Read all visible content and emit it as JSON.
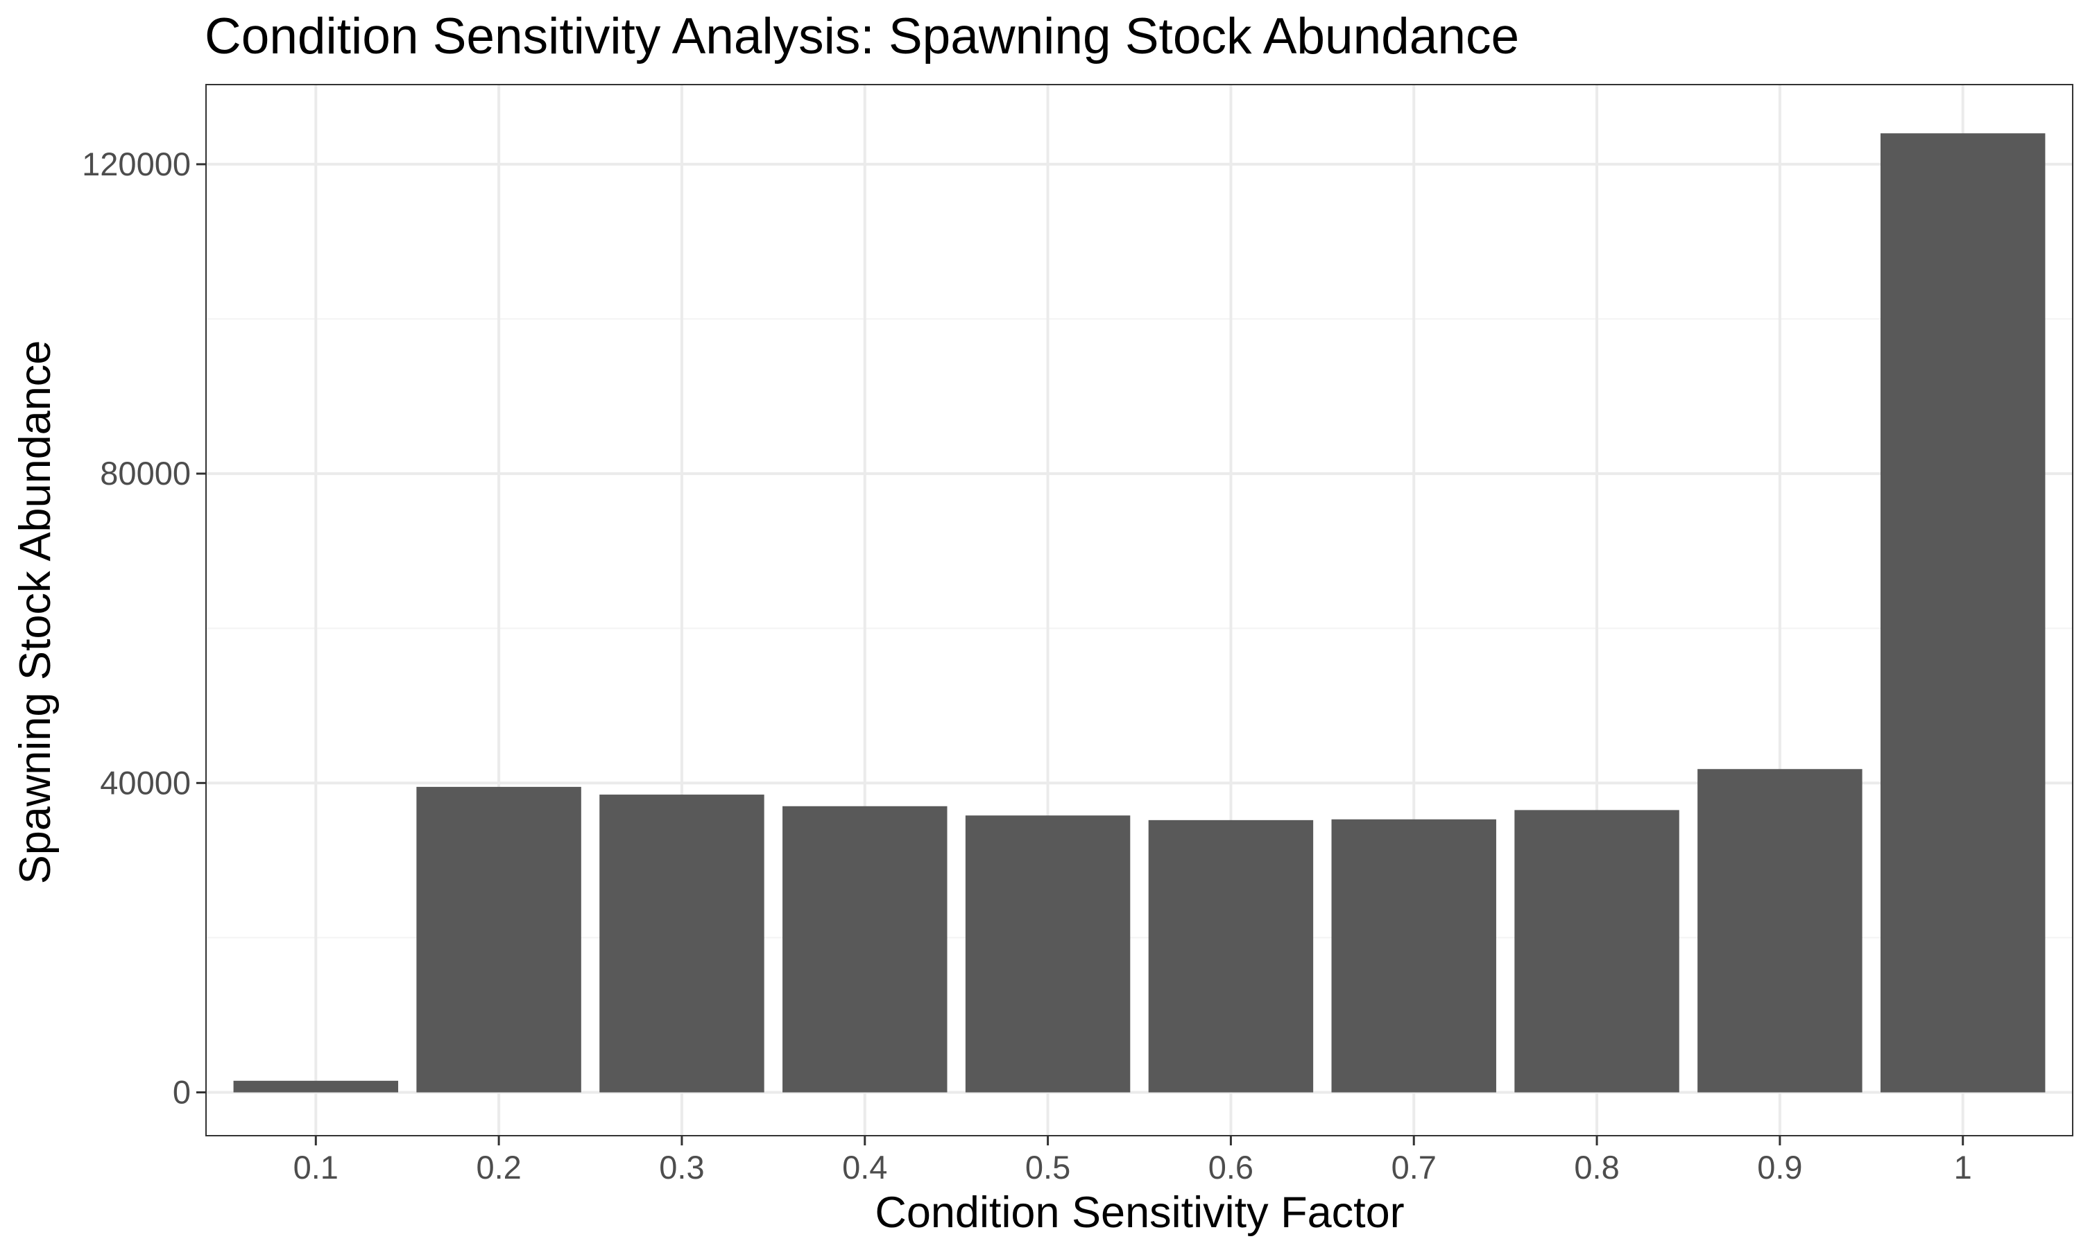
{
  "chart_data": {
    "type": "bar",
    "title": "Condition Sensitivity Analysis: Spawning Stock Abundance",
    "xlabel": "Condition Sensitivity Factor",
    "ylabel": "Spawning Stock Abundance",
    "categories": [
      "0.1",
      "0.2",
      "0.3",
      "0.4",
      "0.5",
      "0.6",
      "0.7",
      "0.8",
      "0.9",
      "1"
    ],
    "values": [
      1500,
      39500,
      38500,
      37000,
      35800,
      35200,
      35300,
      36500,
      41800,
      124000
    ],
    "ylim": [
      -5600,
      130300
    ],
    "yticks": [
      0,
      40000,
      80000,
      120000
    ],
    "grid": true,
    "legend": "none",
    "colors": {
      "bar": "#595959",
      "grid_major": "#ebebeb",
      "grid_minor": "#f4f4f4",
      "panel_border": "#333333",
      "tick_text": "#4d4d4d"
    }
  }
}
